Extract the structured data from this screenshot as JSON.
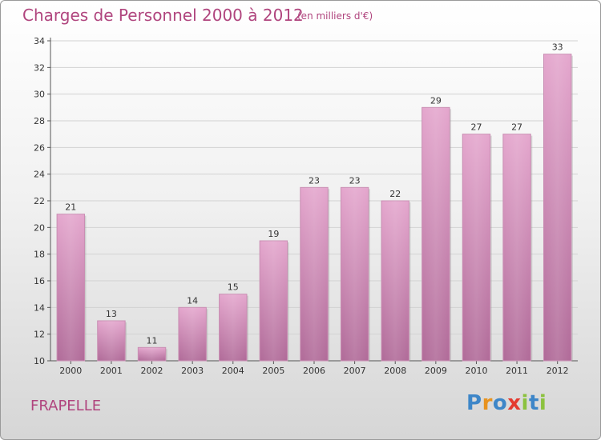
{
  "header": {
    "title": "Charges de Personnel 2000 à 2012",
    "subtitle": "(en milliers d'€)"
  },
  "footer": {
    "commune": "FRAPELLE",
    "logo": "Proxiti"
  },
  "colors": {
    "title": "#b0457e",
    "bar_top": "#e4a6cd",
    "bar_bottom": "#b06a98",
    "logo_letters": [
      "#3d86c8",
      "#e8931f",
      "#3d86c8",
      "#e43a2f",
      "#8cc23f",
      "#3d86c8",
      "#8cc23f"
    ]
  },
  "chart_data": {
    "type": "bar",
    "title": "Charges de Personnel 2000 à 2012",
    "subtitle": "(en milliers d'€)",
    "categories": [
      "2000",
      "2001",
      "2002",
      "2003",
      "2004",
      "2005",
      "2006",
      "2007",
      "2008",
      "2009",
      "2010",
      "2011",
      "2012"
    ],
    "values": [
      21,
      13,
      11,
      14,
      15,
      19,
      23,
      23,
      22,
      29,
      27,
      27,
      33
    ],
    "ylim": [
      10,
      34
    ],
    "yticks": [
      10,
      12,
      14,
      16,
      18,
      20,
      22,
      24,
      26,
      28,
      30,
      32,
      34
    ],
    "grid": true,
    "data_labels": true
  }
}
